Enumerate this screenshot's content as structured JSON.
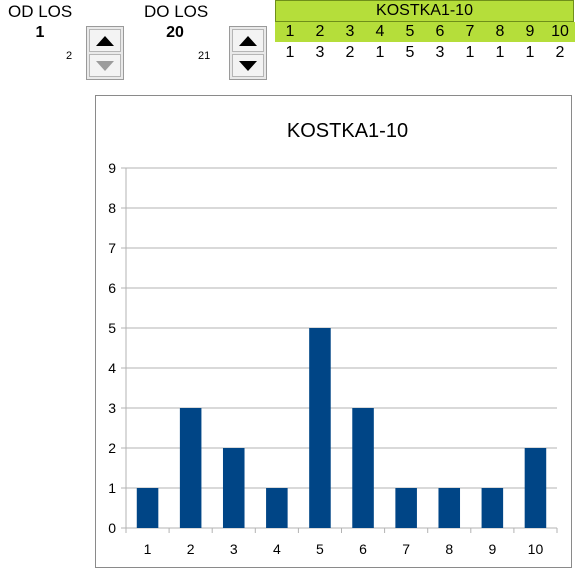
{
  "from_control": {
    "label": "OD LOS",
    "value": "1",
    "next_value": "2"
  },
  "to_control": {
    "label": "DO LOS",
    "value": "20",
    "next_value": "21"
  },
  "table": {
    "title": "KOSTKA1-10",
    "header": [
      "1",
      "2",
      "3",
      "4",
      "5",
      "6",
      "7",
      "8",
      "9",
      "10"
    ],
    "counts": [
      "1",
      "3",
      "2",
      "1",
      "5",
      "3",
      "1",
      "1",
      "1",
      "2"
    ],
    "header_color": "#b5de3a"
  },
  "icons": {
    "up": "triangle-up-icon",
    "down": "triangle-down-icon"
  },
  "chart_data": {
    "type": "bar",
    "title": "KOSTKA1-10",
    "categories": [
      "1",
      "2",
      "3",
      "4",
      "5",
      "6",
      "7",
      "8",
      "9",
      "10"
    ],
    "values": [
      1,
      3,
      2,
      1,
      5,
      3,
      1,
      1,
      1,
      2
    ],
    "ylim": [
      0,
      9
    ],
    "yticks": [
      0,
      1,
      2,
      3,
      4,
      5,
      6,
      7,
      8,
      9
    ],
    "grid": true,
    "bar_color": "#004586",
    "xlabel": "",
    "ylabel": ""
  }
}
